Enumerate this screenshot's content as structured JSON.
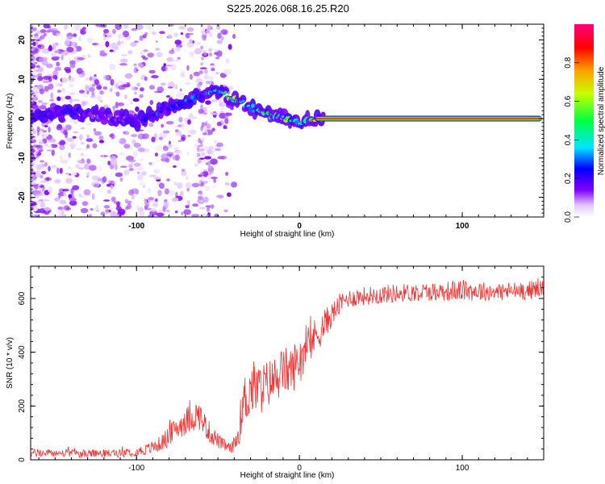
{
  "title": "S225.2026.068.16.25.R20",
  "chart_data": [
    {
      "type": "heatmap",
      "xlabel": "Height of straight line (km)",
      "ylabel": "Frequency (Hz)",
      "xlim": [
        -165,
        150
      ],
      "ylim": [
        -25,
        24
      ],
      "xticks": [
        -100,
        0,
        100
      ],
      "yticks": [
        -20,
        -10,
        0,
        10,
        20
      ],
      "colorbar": {
        "label": "Normalized spectral amplitude",
        "ticks": [
          0.0,
          0.2,
          0.4,
          0.6,
          0.8
        ],
        "range": [
          0,
          1
        ]
      },
      "ridge": {
        "x": [
          -155,
          -140,
          -125,
          -110,
          -100,
          -90,
          -80,
          -70,
          -60,
          -50,
          -40,
          -30,
          -20,
          -10,
          0,
          10,
          20,
          50,
          100,
          150
        ],
        "y": [
          1,
          2,
          1,
          0,
          -1,
          1,
          3,
          4,
          6,
          7,
          5,
          3,
          1,
          0,
          -1,
          0,
          0,
          0,
          0,
          0
        ],
        "amplitude": [
          0.2,
          0.25,
          0.15,
          0.15,
          0.2,
          0.25,
          0.3,
          0.3,
          0.3,
          0.35,
          0.6,
          0.45,
          0.5,
          0.55,
          0.5,
          0.85,
          0.95,
          0.95,
          0.95,
          0.95
        ]
      }
    },
    {
      "type": "line",
      "xlabel": "Height of straight line (km)",
      "ylabel": "SNR (10 * v/v)",
      "xlim": [
        -165,
        150
      ],
      "ylim": [
        0,
        720
      ],
      "xticks": [
        -100,
        0,
        100
      ],
      "yticks": [
        0,
        200,
        400,
        600
      ],
      "series": [
        {
          "name": "SNR",
          "color": "#ee3333",
          "x": [
            -165,
            -150,
            -130,
            -110,
            -95,
            -85,
            -75,
            -68,
            -62,
            -55,
            -48,
            -42,
            -38,
            -35,
            -30,
            -25,
            -20,
            -15,
            -10,
            -5,
            0,
            5,
            10,
            15,
            20,
            25,
            30,
            40,
            60,
            80,
            100,
            120,
            140,
            150
          ],
          "y": [
            25,
            25,
            22,
            25,
            35,
            60,
            120,
            150,
            170,
            100,
            60,
            40,
            80,
            200,
            270,
            260,
            280,
            300,
            330,
            330,
            380,
            420,
            460,
            500,
            540,
            580,
            600,
            610,
            620,
            625,
            630,
            625,
            630,
            640
          ],
          "noise": [
            15,
            15,
            15,
            15,
            20,
            30,
            45,
            55,
            55,
            40,
            25,
            20,
            40,
            100,
            110,
            100,
            90,
            90,
            90,
            90,
            90,
            80,
            70,
            60,
            45,
            40,
            35,
            35,
            35,
            35,
            40,
            35,
            35,
            35
          ]
        }
      ]
    }
  ]
}
